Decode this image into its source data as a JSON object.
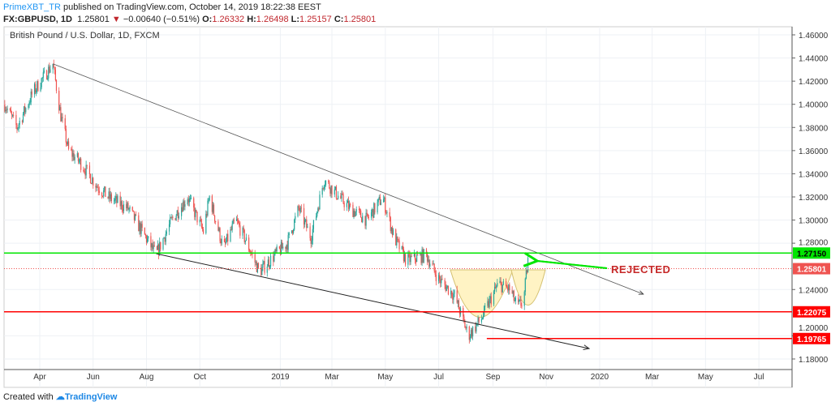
{
  "header": {
    "author": "PrimeXBT_TR",
    "published": "published on TradingView.com, October 14, 2019 18:22:38 EEST",
    "symbol": "FX:GBPUSD, 1D",
    "last": "1.25801",
    "change": "−0.00640 (−0.51%)",
    "o_label": "O:",
    "o": "1.26332",
    "h_label": "H:",
    "h": "1.26498",
    "l_label": "L:",
    "l": "1.25157",
    "c_label": "C:",
    "c": "1.25801"
  },
  "footer": {
    "created": "Created with",
    "brand": "TradingView"
  },
  "colors": {
    "up": "#26a69a",
    "down": "#ef5350",
    "support": "#ff0000",
    "resistance": "#00e600",
    "cup": "#fff3c4"
  },
  "chart_data": {
    "type": "candlestick",
    "title": "British Pound / U.S. Dollar, 1D, FXCM",
    "ylim": [
      1.17,
      1.465
    ],
    "y_ticks": [
      "1.46000",
      "1.44000",
      "1.42000",
      "1.40000",
      "1.38000",
      "1.36000",
      "1.34000",
      "1.32000",
      "1.30000",
      "1.28000",
      "1.24000",
      "1.20000",
      "1.18000"
    ],
    "x_ticks": [
      {
        "label": "Apr",
        "date": "2018-04-01"
      },
      {
        "label": "Jun",
        "date": "2018-06-01"
      },
      {
        "label": "Aug",
        "date": "2018-08-01"
      },
      {
        "label": "Oct",
        "date": "2018-10-01"
      },
      {
        "label": "2019",
        "date": "2019-01-01"
      },
      {
        "label": "Mar",
        "date": "2019-03-01"
      },
      {
        "label": "May",
        "date": "2019-05-01"
      },
      {
        "label": "Jul",
        "date": "2019-07-01"
      },
      {
        "label": "Sep",
        "date": "2019-09-01"
      },
      {
        "label": "Nov",
        "date": "2019-11-01"
      },
      {
        "label": "2020",
        "date": "2020-01-01"
      },
      {
        "label": "Mar",
        "date": "2020-03-01"
      },
      {
        "label": "May",
        "date": "2020-05-01"
      },
      {
        "label": "Jul",
        "date": "2020-07-01"
      }
    ],
    "price_path": [
      [
        "2018-02-20",
        1.4
      ],
      [
        "2018-03-06",
        1.38
      ],
      [
        "2018-03-24",
        1.41
      ],
      [
        "2018-04-16",
        1.435
      ],
      [
        "2018-04-25",
        1.39
      ],
      [
        "2018-05-04",
        1.36
      ],
      [
        "2018-05-17",
        1.35
      ],
      [
        "2018-06-05",
        1.33
      ],
      [
        "2018-06-18",
        1.32
      ],
      [
        "2018-07-11",
        1.31
      ],
      [
        "2018-08-12",
        1.27
      ],
      [
        "2018-08-30",
        1.3
      ],
      [
        "2018-09-17",
        1.32
      ],
      [
        "2018-10-05",
        1.29
      ],
      [
        "2018-10-12",
        1.32
      ],
      [
        "2018-10-28",
        1.275
      ],
      [
        "2018-11-11",
        1.3
      ],
      [
        "2018-11-24",
        1.28
      ],
      [
        "2018-12-08",
        1.255
      ],
      [
        "2018-12-26",
        1.27
      ],
      [
        "2019-01-09",
        1.28
      ],
      [
        "2019-01-22",
        1.31
      ],
      [
        "2019-02-05",
        1.285
      ],
      [
        "2019-02-20",
        1.335
      ],
      [
        "2019-03-09",
        1.32
      ],
      [
        "2019-03-22",
        1.31
      ],
      [
        "2019-04-10",
        1.3
      ],
      [
        "2019-04-28",
        1.32
      ],
      [
        "2019-05-11",
        1.285
      ],
      [
        "2019-05-25",
        1.265
      ],
      [
        "2019-06-17",
        1.27
      ],
      [
        "2019-06-30",
        1.25
      ],
      [
        "2019-07-19",
        1.235
      ],
      [
        "2019-08-04",
        1.2
      ],
      [
        "2019-08-19",
        1.215
      ],
      [
        "2019-09-07",
        1.245
      ],
      [
        "2019-09-20",
        1.24
      ],
      [
        "2019-09-29",
        1.225
      ],
      [
        "2019-10-06",
        1.23
      ],
      [
        "2019-10-11",
        1.265
      ],
      [
        "2019-10-14",
        1.258
      ]
    ],
    "levels": [
      {
        "label": "1.27150",
        "price": 1.2715,
        "color": "#00e600"
      },
      {
        "label": "1.25801",
        "price": 1.25801,
        "color": "#ef5350",
        "dotted": true
      },
      {
        "label": "1.22075",
        "price": 1.22075,
        "color": "#ff0000"
      },
      {
        "label": "1.19765",
        "price": 1.19765,
        "color": "#ff0000",
        "from": "2019-08-25"
      }
    ],
    "trendlines": [
      {
        "from": [
          "2018-04-16",
          1.435
        ],
        "to": [
          "2020-02-20",
          1.236
        ]
      },
      {
        "from": [
          "2018-08-12",
          1.271
        ],
        "to": [
          "2019-12-20",
          1.189
        ]
      }
    ],
    "annotation": "REJECTED"
  }
}
